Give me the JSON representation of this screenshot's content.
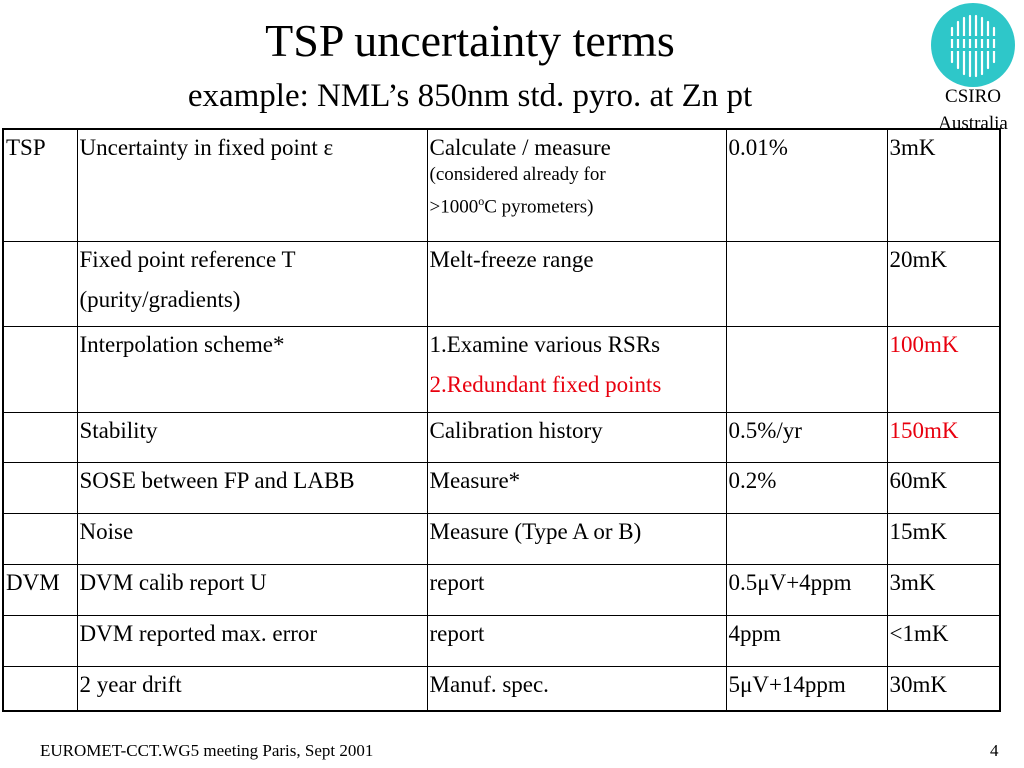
{
  "slide": {
    "title": "TSP uncertainty terms",
    "subtitle": "example: NML’s 850nm std. pyro. at Zn pt",
    "logo": {
      "name": "CSIRO",
      "country": "Australia",
      "color": "#2ec7c9"
    },
    "table": {
      "rows": [
        {
          "group": "TSP",
          "term": "Uncertainty in fixed point ε",
          "method": "Calculate / measure",
          "method_note_1": "(considered already for",
          "method_note_2_pre": ">1000",
          "method_note_2_sup": "o",
          "method_note_2_post": "C pyrometers)",
          "value": "0.01%",
          "temp": "3mK"
        },
        {
          "group": "",
          "term": "Fixed point reference T",
          "term_2": "(purity/gradients)",
          "method": "Melt-freeze range",
          "value": "",
          "temp": "20mK"
        },
        {
          "group": "",
          "term": "Interpolation scheme*",
          "method": "1.Examine various RSRs",
          "method_2": "2.Redundant fixed points",
          "value": "",
          "temp": "100mK"
        },
        {
          "group": "",
          "term": "Stability",
          "method": "Calibration history",
          "value": "0.5%/yr",
          "temp": "150mK"
        },
        {
          "group": "",
          "term": "SOSE between FP and LABB",
          "method": "Measure*",
          "value": "0.2%",
          "temp": "60mK"
        },
        {
          "group": "",
          "term": "Noise",
          "method": "Measure (Type A or B)",
          "value": "",
          "temp": "15mK"
        },
        {
          "group": "DVM",
          "term": "DVM calib report U",
          "method": "report",
          "value": "0.5μV+4ppm",
          "temp": "3mK"
        },
        {
          "group": "",
          "term": "DVM reported max. error",
          "method": "report",
          "value": "4ppm",
          "temp": "<1mK"
        },
        {
          "group": "",
          "term": "2 year drift",
          "method": "Manuf. spec.",
          "value": "5μV+14ppm",
          "temp": "30mK"
        }
      ]
    },
    "footer": {
      "left": "EUROMET-CCT.WG5 meeting Paris, Sept 2001",
      "page": "4"
    },
    "colors": {
      "highlight": "#e8000e",
      "text": "#000000"
    }
  }
}
